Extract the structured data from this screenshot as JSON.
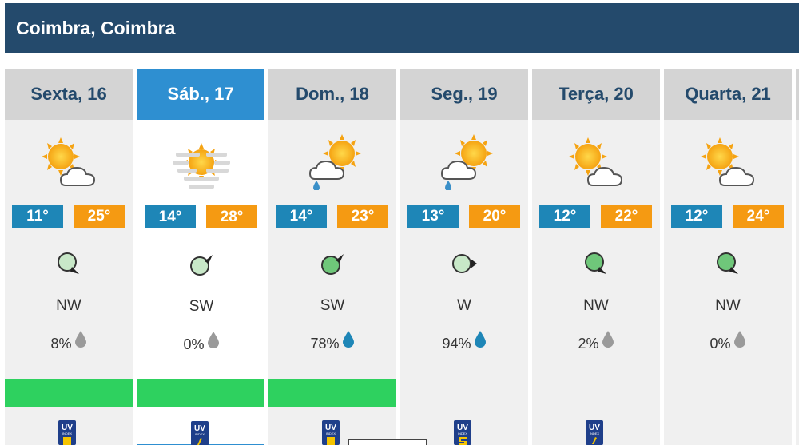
{
  "location": {
    "title": "Coimbra, Coimbra"
  },
  "days": [
    {
      "label": "Sexta, 16",
      "icon": "sun-cloud-icon",
      "min": "11°",
      "max": "25°",
      "wind_dir": "NW",
      "wind_icon": "wind-arrow-nw-icon",
      "precip": "8%",
      "drop_icon": "gray-drop-icon",
      "selected": false
    },
    {
      "label": "Sáb., 17",
      "icon": "sun-haze-icon",
      "min": "14°",
      "max": "28°",
      "wind_dir": "SW",
      "wind_icon": "wind-arrow-sw-icon",
      "precip": "0%",
      "drop_icon": "gray-drop-icon",
      "selected": true
    },
    {
      "label": "Dom., 18",
      "icon": "sun-cloud-rain-icon",
      "min": "14°",
      "max": "23°",
      "wind_dir": "SW",
      "wind_icon": "wind-arrow-sw-icon",
      "precip": "78%",
      "drop_icon": "blue-drop-icon",
      "selected": false
    },
    {
      "label": "Seg., 19",
      "icon": "sun-cloud-rain-icon",
      "min": "13°",
      "max": "20°",
      "wind_dir": "W",
      "wind_icon": "wind-arrow-w-icon",
      "precip": "94%",
      "drop_icon": "blue-drop-icon",
      "selected": false
    },
    {
      "label": "Terça, 20",
      "icon": "sun-cloud-icon",
      "min": "12°",
      "max": "22°",
      "wind_dir": "NW",
      "wind_icon": "wind-arrow-nw-icon",
      "precip": "2%",
      "drop_icon": "gray-drop-icon",
      "selected": false
    },
    {
      "label": "Quarta, 21",
      "icon": "sun-cloud-icon",
      "min": "12°",
      "max": "24°",
      "wind_dir": "NW",
      "wind_icon": "wind-arrow-nw-icon",
      "precip": "0%",
      "drop_icon": "gray-drop-icon",
      "selected": false
    }
  ],
  "uv_badge": {
    "label": "UV",
    "sub": "INDEX"
  },
  "colors": {
    "header_bg": "#244a6c",
    "selected_tab": "#2e8fd1",
    "min_temp": "#1e86b7",
    "max_temp": "#f59a12",
    "green_bar": "#2ed15f"
  }
}
